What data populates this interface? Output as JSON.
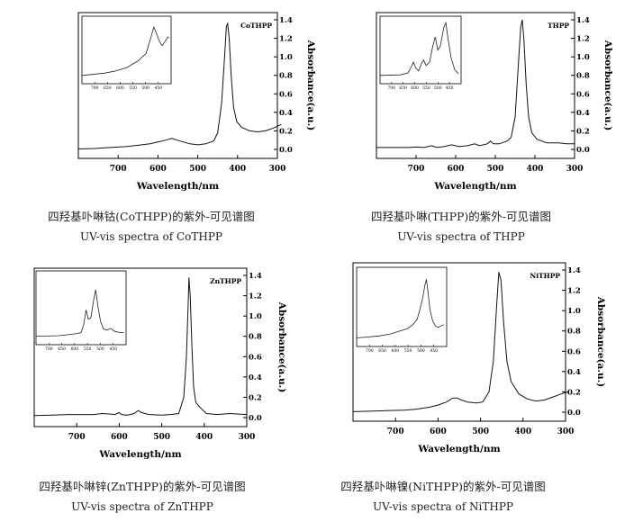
{
  "chart_data": [
    {
      "id": "cothpp",
      "type": "line",
      "x_reversed": true,
      "xlabel": "Wavelength/nm",
      "ylabel": "Absorbance(a.u.)",
      "xlim": [
        800,
        300
      ],
      "ylim": [
        0,
        1.4
      ],
      "x_ticks": [
        700,
        600,
        500,
        400,
        300
      ],
      "y_ticks": [
        0.0,
        0.2,
        0.4,
        0.6,
        0.8,
        1.0,
        1.2,
        1.4
      ],
      "series": [
        {
          "values": [
            [
              800,
              0.005
            ],
            [
              760,
              0.01
            ],
            [
              720,
              0.02
            ],
            [
              680,
              0.03
            ],
            [
              650,
              0.045
            ],
            [
              620,
              0.06
            ],
            [
              600,
              0.08
            ],
            [
              580,
              0.1
            ],
            [
              565,
              0.12
            ],
            [
              552,
              0.1
            ],
            [
              540,
              0.085
            ],
            [
              520,
              0.06
            ],
            [
              500,
              0.05
            ],
            [
              480,
              0.06
            ],
            [
              460,
              0.09
            ],
            [
              450,
              0.18
            ],
            [
              440,
              0.5
            ],
            [
              432,
              1.05
            ],
            [
              428,
              1.33
            ],
            [
              425,
              1.36
            ],
            [
              421,
              1.2
            ],
            [
              416,
              0.8
            ],
            [
              410,
              0.45
            ],
            [
              402,
              0.3
            ],
            [
              390,
              0.24
            ],
            [
              370,
              0.2
            ],
            [
              350,
              0.19
            ],
            [
              330,
              0.2
            ],
            [
              310,
              0.23
            ],
            [
              290,
              0.27
            ]
          ]
        }
      ],
      "inset": {
        "label": "CoTHPP",
        "x_ticks": [
          "700",
          "650",
          "600",
          "550",
          "500",
          "450"
        ],
        "values": [
          [
            800,
            0.02
          ],
          [
            720,
            0.06
          ],
          [
            680,
            0.1
          ],
          [
            640,
            0.16
          ],
          [
            600,
            0.28
          ],
          [
            570,
            0.42
          ],
          [
            552,
            0.72
          ],
          [
            542,
            0.9
          ],
          [
            532,
            0.78
          ],
          [
            522,
            0.64
          ],
          [
            512,
            0.56
          ],
          [
            500,
            0.65
          ],
          [
            492,
            0.72
          ],
          [
            488,
            0.7
          ]
        ]
      },
      "caption_zh": "四羟基卟啉钴(CoTHPP)的紫外-可见谱图",
      "caption_en": "UV-vis spectra of CoTHPP"
    },
    {
      "id": "thpp",
      "type": "line",
      "x_reversed": true,
      "xlabel": "Wavelength/nm",
      "ylabel": "Absorbance(a.u.)",
      "xlim": [
        800,
        300
      ],
      "ylim": [
        0,
        1.4
      ],
      "x_ticks": [
        700,
        600,
        500,
        400,
        300
      ],
      "y_ticks": [
        0.0,
        0.2,
        0.4,
        0.6,
        0.8,
        1.0,
        1.2,
        1.4
      ],
      "series": [
        {
          "values": [
            [
              800,
              0.02
            ],
            [
              760,
              0.02
            ],
            [
              720,
              0.02
            ],
            [
              700,
              0.025
            ],
            [
              680,
              0.02
            ],
            [
              660,
              0.04
            ],
            [
              648,
              0.02
            ],
            [
              630,
              0.03
            ],
            [
              610,
              0.05
            ],
            [
              592,
              0.03
            ],
            [
              570,
              0.04
            ],
            [
              552,
              0.06
            ],
            [
              540,
              0.04
            ],
            [
              520,
              0.06
            ],
            [
              512,
              0.09
            ],
            [
              505,
              0.06
            ],
            [
              490,
              0.06
            ],
            [
              470,
              0.09
            ],
            [
              460,
              0.13
            ],
            [
              450,
              0.35
            ],
            [
              442,
              0.9
            ],
            [
              436,
              1.32
            ],
            [
              432,
              1.4
            ],
            [
              428,
              1.2
            ],
            [
              422,
              0.7
            ],
            [
              416,
              0.35
            ],
            [
              408,
              0.18
            ],
            [
              395,
              0.11
            ],
            [
              370,
              0.07
            ],
            [
              340,
              0.07
            ],
            [
              320,
              0.06
            ],
            [
              300,
              0.06
            ]
          ]
        }
      ],
      "inset": {
        "label": "THPP",
        "x_ticks": [
          "700",
          "650",
          "600",
          "550",
          "500",
          "450"
        ],
        "values": [
          [
            800,
            0.02
          ],
          [
            720,
            0.03
          ],
          [
            690,
            0.06
          ],
          [
            676,
            0.18
          ],
          [
            668,
            0.26
          ],
          [
            660,
            0.16
          ],
          [
            648,
            0.1
          ],
          [
            636,
            0.24
          ],
          [
            628,
            0.3
          ],
          [
            618,
            0.2
          ],
          [
            604,
            0.26
          ],
          [
            592,
            0.55
          ],
          [
            582,
            0.72
          ],
          [
            572,
            0.48
          ],
          [
            562,
            0.55
          ],
          [
            548,
            0.9
          ],
          [
            540,
            0.98
          ],
          [
            532,
            0.7
          ],
          [
            520,
            0.35
          ],
          [
            505,
            0.12
          ],
          [
            490,
            0.05
          ]
        ]
      },
      "caption_zh": "四羟基卟啉(THPP)的紫外-可见谱图",
      "caption_en": "UV-vis spectra of THPP"
    },
    {
      "id": "znthpp",
      "type": "line",
      "x_reversed": true,
      "xlabel": "Wavelength/nm",
      "ylabel": "Absorbance(a.u.)",
      "xlim": [
        800,
        300
      ],
      "ylim": [
        0,
        1.4
      ],
      "x_ticks": [
        700,
        600,
        500,
        400,
        300
      ],
      "y_ticks": [
        0.0,
        0.2,
        0.4,
        0.6,
        0.8,
        1.0,
        1.2,
        1.4
      ],
      "series": [
        {
          "values": [
            [
              800,
              0.02
            ],
            [
              760,
              0.025
            ],
            [
              720,
              0.03
            ],
            [
              690,
              0.03
            ],
            [
              660,
              0.03
            ],
            [
              640,
              0.04
            ],
            [
              620,
              0.035
            ],
            [
              610,
              0.03
            ],
            [
              600,
              0.05
            ],
            [
              595,
              0.03
            ],
            [
              580,
              0.025
            ],
            [
              565,
              0.04
            ],
            [
              555,
              0.07
            ],
            [
              548,
              0.05
            ],
            [
              530,
              0.03
            ],
            [
              500,
              0.025
            ],
            [
              480,
              0.03
            ],
            [
              460,
              0.04
            ],
            [
              448,
              0.2
            ],
            [
              442,
              0.6
            ],
            [
              438,
              1.1
            ],
            [
              436,
              1.38
            ],
            [
              433,
              1.2
            ],
            [
              429,
              0.7
            ],
            [
              425,
              0.3
            ],
            [
              420,
              0.15
            ],
            [
              410,
              0.1
            ],
            [
              395,
              0.04
            ],
            [
              370,
              0.03
            ],
            [
              340,
              0.04
            ],
            [
              300,
              0.03
            ]
          ]
        }
      ],
      "inset": {
        "label": "ZnTHPP",
        "x_ticks": [
          "700",
          "650",
          "600",
          "550",
          "500",
          "450"
        ],
        "values": [
          [
            800,
            0.02
          ],
          [
            720,
            0.03
          ],
          [
            680,
            0.05
          ],
          [
            660,
            0.06
          ],
          [
            640,
            0.08
          ],
          [
            630,
            0.22
          ],
          [
            622,
            0.45
          ],
          [
            614,
            0.3
          ],
          [
            605,
            0.32
          ],
          [
            596,
            0.6
          ],
          [
            588,
            0.78
          ],
          [
            580,
            0.5
          ],
          [
            570,
            0.25
          ],
          [
            560,
            0.14
          ],
          [
            548,
            0.12
          ],
          [
            535,
            0.15
          ],
          [
            520,
            0.1
          ],
          [
            500,
            0.08
          ],
          [
            488,
            0.08
          ]
        ]
      },
      "caption_zh": "四羟基卟啉锌(ZnTHPP)的紫外-可见谱图",
      "caption_en": "UV-vis spectra of ZnTHPP"
    },
    {
      "id": "nithpp",
      "type": "line",
      "x_reversed": true,
      "xlabel": "Wavelength/nm",
      "ylabel": "Absorbance(a.u.)",
      "xlim": [
        800,
        300
      ],
      "ylim": [
        0,
        1.4
      ],
      "x_ticks": [
        700,
        600,
        500,
        400,
        300
      ],
      "y_ticks": [
        0.0,
        0.2,
        0.4,
        0.6,
        0.8,
        1.0,
        1.2,
        1.4
      ],
      "series": [
        {
          "values": [
            [
              800,
              0.005
            ],
            [
              760,
              0.01
            ],
            [
              720,
              0.015
            ],
            [
              680,
              0.02
            ],
            [
              650,
              0.03
            ],
            [
              620,
              0.05
            ],
            [
              600,
              0.07
            ],
            [
              580,
              0.1
            ],
            [
              565,
              0.14
            ],
            [
              555,
              0.14
            ],
            [
              545,
              0.12
            ],
            [
              530,
              0.1
            ],
            [
              510,
              0.09
            ],
            [
              495,
              0.1
            ],
            [
              480,
              0.2
            ],
            [
              470,
              0.5
            ],
            [
              462,
              1.05
            ],
            [
              457,
              1.38
            ],
            [
              452,
              1.3
            ],
            [
              446,
              0.9
            ],
            [
              438,
              0.5
            ],
            [
              428,
              0.3
            ],
            [
              410,
              0.18
            ],
            [
              390,
              0.13
            ],
            [
              370,
              0.11
            ],
            [
              350,
              0.12
            ],
            [
              330,
              0.15
            ],
            [
              310,
              0.18
            ],
            [
              295,
              0.2
            ]
          ]
        }
      ],
      "inset": {
        "label": "NiTHPP",
        "x_ticks": [
          "700",
          "650",
          "600",
          "550",
          "500",
          "450"
        ],
        "values": [
          [
            800,
            0.02
          ],
          [
            720,
            0.05
          ],
          [
            680,
            0.08
          ],
          [
            650,
            0.12
          ],
          [
            620,
            0.16
          ],
          [
            600,
            0.22
          ],
          [
            585,
            0.3
          ],
          [
            575,
            0.45
          ],
          [
            565,
            0.62
          ],
          [
            558,
            0.8
          ],
          [
            552,
            0.9
          ],
          [
            546,
            0.7
          ],
          [
            540,
            0.45
          ],
          [
            530,
            0.28
          ],
          [
            520,
            0.2
          ],
          [
            510,
            0.18
          ],
          [
            500,
            0.2
          ],
          [
            490,
            0.22
          ]
        ]
      },
      "caption_zh": "四羟基卟啉镍(NiTHPP)的紫外-可见谱图",
      "caption_en": "UV-vis spectra of NiTHPP"
    }
  ]
}
